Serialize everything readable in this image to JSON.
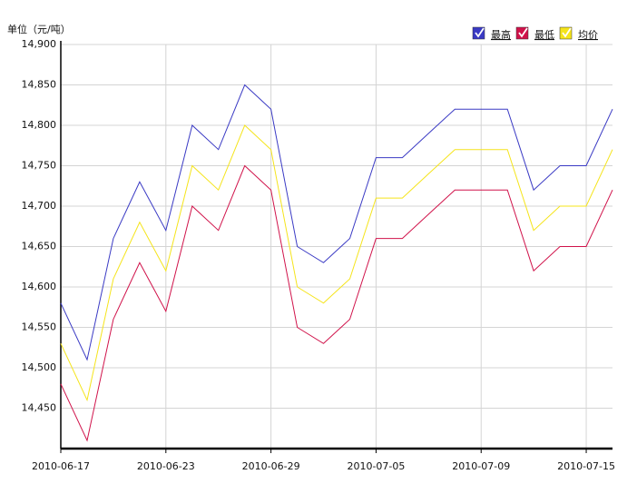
{
  "chart_data": {
    "type": "line",
    "unit_label": "单位（元/吨）",
    "categories": [
      "2010-06-17",
      null,
      null,
      null,
      "2010-06-23",
      null,
      null,
      null,
      "2010-06-29",
      null,
      null,
      null,
      "2010-07-05",
      null,
      null,
      null,
      "2010-07-09",
      null,
      null,
      null,
      "2010-07-15",
      null
    ],
    "series": [
      {
        "name": "最高",
        "color": "#3a3ac4",
        "values": [
          14580,
          14510,
          14660,
          14730,
          14670,
          14800,
          14770,
          14850,
          14820,
          14650,
          14630,
          14660,
          14760,
          14760,
          14790,
          14820,
          14820,
          14820,
          14720,
          14750,
          14750,
          14820
        ]
      },
      {
        "name": "最低",
        "color": "#d0124a",
        "values": [
          14480,
          14410,
          14560,
          14630,
          14570,
          14700,
          14670,
          14750,
          14720,
          14550,
          14530,
          14560,
          14660,
          14660,
          14690,
          14720,
          14720,
          14720,
          14620,
          14650,
          14650,
          14720
        ]
      },
      {
        "name": "均价",
        "color": "#f5e41a",
        "values": [
          14530,
          14460,
          14610,
          14680,
          14620,
          14750,
          14720,
          14800,
          14770,
          14600,
          14580,
          14610,
          14710,
          14710,
          14740,
          14770,
          14770,
          14770,
          14670,
          14700,
          14700,
          14770
        ]
      }
    ],
    "ylim": [
      14400,
      14900
    ],
    "yticks": [
      {
        "value": 14450,
        "label": "14,450"
      },
      {
        "value": 14500,
        "label": "14,500"
      },
      {
        "value": 14550,
        "label": "14,550"
      },
      {
        "value": 14600,
        "label": "14,600"
      },
      {
        "value": 14650,
        "label": "14,650"
      },
      {
        "value": 14700,
        "label": "14,700"
      },
      {
        "value": 14750,
        "label": "14,750"
      },
      {
        "value": 14800,
        "label": "14,800"
      },
      {
        "value": 14850,
        "label": "14,850"
      },
      {
        "value": 14900,
        "label": "14,900"
      }
    ],
    "grid": true,
    "legend": "top-right"
  }
}
